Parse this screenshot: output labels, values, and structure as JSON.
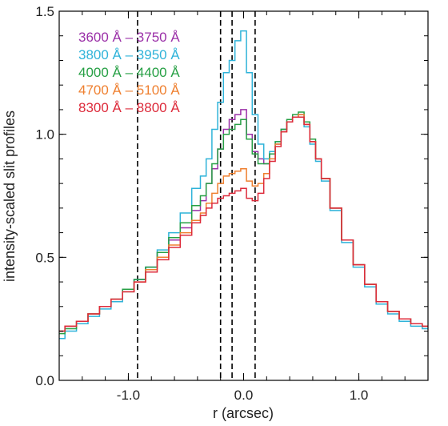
{
  "chart_data": {
    "type": "line",
    "step": true,
    "xlabel": "r (arcsec)",
    "ylabel": "intensity-scaled slit profiles",
    "xlim": [
      -1.6,
      1.6
    ],
    "ylim": [
      0.0,
      1.5
    ],
    "xticks": [
      -1.0,
      0.0,
      1.0
    ],
    "xtick_labels": [
      "-1.0",
      "0.0",
      "1.0"
    ],
    "yticks": [
      0.0,
      0.5,
      1.0,
      1.5
    ],
    "ytick_labels": [
      "0.0",
      "0.5",
      "1.0",
      "1.5"
    ],
    "vlines": [
      -0.92,
      -0.2,
      -0.1,
      0.1
    ],
    "legend_position": "top-left",
    "x": [
      -1.6,
      -1.5,
      -1.4,
      -1.3,
      -1.2,
      -1.1,
      -1.0,
      -0.9,
      -0.8,
      -0.7,
      -0.6,
      -0.5,
      -0.4,
      -0.35,
      -0.3,
      -0.25,
      -0.2,
      -0.15,
      -0.1,
      -0.05,
      0.0,
      0.05,
      0.1,
      0.15,
      0.2,
      0.25,
      0.3,
      0.35,
      0.4,
      0.45,
      0.5,
      0.55,
      0.6,
      0.65,
      0.7,
      0.8,
      0.9,
      1.0,
      1.1,
      1.2,
      1.3,
      1.4,
      1.5,
      1.6
    ],
    "series": [
      {
        "name": "3600 Å – 3750 Å",
        "color": "#9b30a8",
        "values": [
          0.2,
          0.22,
          0.24,
          0.27,
          0.3,
          0.33,
          0.37,
          0.41,
          0.46,
          0.52,
          0.57,
          0.62,
          0.69,
          0.73,
          0.8,
          0.86,
          0.94,
          1.02,
          1.06,
          1.08,
          1.1,
          1.0,
          0.93,
          0.9,
          0.88,
          0.92,
          0.96,
          1.02,
          1.05,
          1.07,
          1.08,
          1.04,
          0.97,
          0.9,
          0.82,
          0.7,
          0.57,
          0.47,
          0.39,
          0.32,
          0.28,
          0.25,
          0.23,
          0.22
        ]
      },
      {
        "name": "3800 Å – 3950 Å",
        "color": "#2fb3d9",
        "values": [
          0.17,
          0.2,
          0.23,
          0.26,
          0.29,
          0.32,
          0.36,
          0.41,
          0.46,
          0.53,
          0.6,
          0.68,
          0.78,
          0.83,
          0.9,
          1.02,
          1.13,
          1.25,
          1.3,
          1.38,
          1.42,
          1.25,
          1.08,
          0.96,
          0.9,
          0.93,
          0.97,
          1.02,
          1.05,
          1.07,
          1.07,
          1.03,
          0.96,
          0.89,
          0.81,
          0.69,
          0.56,
          0.46,
          0.38,
          0.31,
          0.27,
          0.24,
          0.22,
          0.21
        ]
      },
      {
        "name": "4000 Å – 4400 Å",
        "color": "#27a045",
        "values": [
          0.19,
          0.21,
          0.24,
          0.27,
          0.3,
          0.33,
          0.37,
          0.41,
          0.46,
          0.52,
          0.58,
          0.64,
          0.71,
          0.75,
          0.8,
          0.88,
          0.94,
          1.0,
          1.02,
          1.04,
          1.06,
          0.98,
          0.92,
          0.88,
          0.88,
          0.92,
          0.97,
          1.02,
          1.06,
          1.08,
          1.09,
          1.05,
          0.98,
          0.9,
          0.82,
          0.7,
          0.57,
          0.47,
          0.39,
          0.32,
          0.28,
          0.25,
          0.23,
          0.22
        ]
      },
      {
        "name": "4700 Å – 5100 Å",
        "color": "#ef8030",
        "values": [
          0.2,
          0.22,
          0.24,
          0.27,
          0.3,
          0.33,
          0.36,
          0.4,
          0.45,
          0.5,
          0.55,
          0.6,
          0.65,
          0.68,
          0.72,
          0.76,
          0.8,
          0.83,
          0.84,
          0.85,
          0.86,
          0.81,
          0.79,
          0.8,
          0.84,
          0.9,
          0.96,
          1.01,
          1.05,
          1.07,
          1.08,
          1.04,
          0.97,
          0.9,
          0.82,
          0.7,
          0.57,
          0.47,
          0.39,
          0.32,
          0.28,
          0.25,
          0.23,
          0.22
        ]
      },
      {
        "name": "8300 Å – 8800 Å",
        "color": "#dd2b3b",
        "values": [
          0.2,
          0.22,
          0.24,
          0.27,
          0.3,
          0.33,
          0.36,
          0.4,
          0.44,
          0.49,
          0.54,
          0.59,
          0.64,
          0.67,
          0.7,
          0.72,
          0.74,
          0.75,
          0.76,
          0.77,
          0.78,
          0.74,
          0.73,
          0.76,
          0.82,
          0.89,
          0.95,
          1.01,
          1.05,
          1.07,
          1.07,
          1.04,
          0.97,
          0.9,
          0.82,
          0.7,
          0.57,
          0.47,
          0.39,
          0.32,
          0.28,
          0.25,
          0.23,
          0.22
        ]
      }
    ]
  }
}
